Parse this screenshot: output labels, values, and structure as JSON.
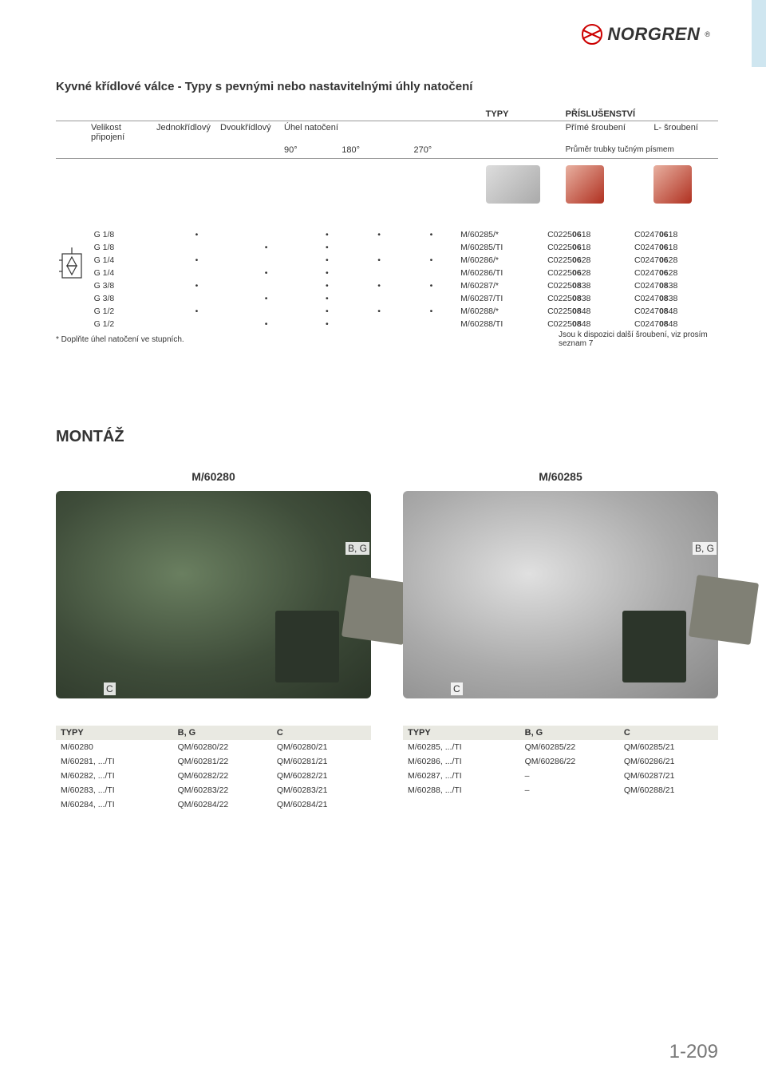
{
  "brand": "NORGREN",
  "page_title": "Kyvné křídlové válce  - Typy s pevnými nebo nastavitelnými úhly natočení",
  "header": {
    "col_size": "Velikost připojení",
    "col_single": "Jednokřídlový",
    "col_double": "Dvoukřídlový",
    "col_angle": "Úhel natočení",
    "angles": [
      "90°",
      "180°",
      "270°"
    ],
    "col_types": "TYPY",
    "col_accessories": "PŘÍSLUŠENSTVÍ",
    "acc_direct": "Přímé šroubení",
    "acc_L": "L- šroubení",
    "acc_diameter": "Průměr trubky tučným písmem"
  },
  "type_rows": [
    {
      "size": "G 1/8",
      "s": "•",
      "d": "",
      "a90": "•",
      "a180": "•",
      "a270": "•",
      "typ": "M/60285/*",
      "fit1_a": "C0225",
      "fit1_b": "06",
      "fit1_c": "18",
      "fit2_a": "C0247",
      "fit2_b": "06",
      "fit2_c": "18"
    },
    {
      "size": "G 1/8",
      "s": "",
      "d": "•",
      "a90": "•",
      "a180": "",
      "a270": "",
      "typ": "M/60285/TI",
      "fit1_a": "C0225",
      "fit1_b": "06",
      "fit1_c": "18",
      "fit2_a": "C0247",
      "fit2_b": "06",
      "fit2_c": "18"
    },
    {
      "size": "G 1/4",
      "s": "•",
      "d": "",
      "a90": "•",
      "a180": "•",
      "a270": "•",
      "typ": "M/60286/*",
      "fit1_a": "C0225",
      "fit1_b": "06",
      "fit1_c": "28",
      "fit2_a": "C0247",
      "fit2_b": "06",
      "fit2_c": "28"
    },
    {
      "size": "G 1/4",
      "s": "",
      "d": "•",
      "a90": "•",
      "a180": "",
      "a270": "",
      "typ": "M/60286/TI",
      "fit1_a": "C0225",
      "fit1_b": "06",
      "fit1_c": "28",
      "fit2_a": "C0247",
      "fit2_b": "06",
      "fit2_c": "28"
    },
    {
      "size": "G 3/8",
      "s": "•",
      "d": "",
      "a90": "•",
      "a180": "•",
      "a270": "•",
      "typ": "M/60287/*",
      "fit1_a": "C0225",
      "fit1_b": "08",
      "fit1_c": "38",
      "fit2_a": "C0247",
      "fit2_b": "08",
      "fit2_c": "38"
    },
    {
      "size": "G 3/8",
      "s": "",
      "d": "•",
      "a90": "•",
      "a180": "",
      "a270": "",
      "typ": "M/60287/TI",
      "fit1_a": "C0225",
      "fit1_b": "08",
      "fit1_c": "38",
      "fit2_a": "C0247",
      "fit2_b": "08",
      "fit2_c": "38"
    },
    {
      "size": "G 1/2",
      "s": "•",
      "d": "",
      "a90": "•",
      "a180": "•",
      "a270": "•",
      "typ": "M/60288/*",
      "fit1_a": "C0225",
      "fit1_b": "08",
      "fit1_c": "48",
      "fit2_a": "C0247",
      "fit2_b": "08",
      "fit2_c": "48"
    },
    {
      "size": "G 1/2",
      "s": "",
      "d": "•",
      "a90": "•",
      "a180": "",
      "a270": "",
      "typ": "M/60288/TI",
      "fit1_a": "C0225",
      "fit1_b": "08",
      "fit1_c": "48",
      "fit2_a": "C0247",
      "fit2_b": "08",
      "fit2_c": "48"
    }
  ],
  "footnote_left": "* Doplňte úhel natočení ve stupních.",
  "footnote_right": "Jsou k dispozici další šroubení, viz prosím seznam 7",
  "section_montaz": "MONTÁŽ",
  "montaz": {
    "left_label": "M/60280",
    "right_label": "M/60285",
    "label_C": "C",
    "label_BG": "B, G"
  },
  "bottom_left": {
    "head": [
      "TYPY",
      "B, G",
      "C"
    ],
    "rows": [
      [
        "M/60280",
        "QM/60280/22",
        "QM/60280/21"
      ],
      [
        "M/60281, .../TI",
        "QM/60281/22",
        "QM/60281/21"
      ],
      [
        "M/60282, .../TI",
        "QM/60282/22",
        "QM/60282/21"
      ],
      [
        "M/60283, .../TI",
        "QM/60283/22",
        "QM/60283/21"
      ],
      [
        "M/60284, .../TI",
        "QM/60284/22",
        "QM/60284/21"
      ]
    ]
  },
  "bottom_right": {
    "head": [
      "TYPY",
      "B, G",
      "C"
    ],
    "rows": [
      [
        "M/60285, .../TI",
        "QM/60285/22",
        "QM/60285/21"
      ],
      [
        "M/60286, .../TI",
        "QM/60286/22",
        "QM/60286/21"
      ],
      [
        "M/60287, .../TI",
        "–",
        "QM/60287/21"
      ],
      [
        "M/60288, .../TI",
        "–",
        "QM/60288/21"
      ]
    ]
  },
  "page_number": "1-209"
}
